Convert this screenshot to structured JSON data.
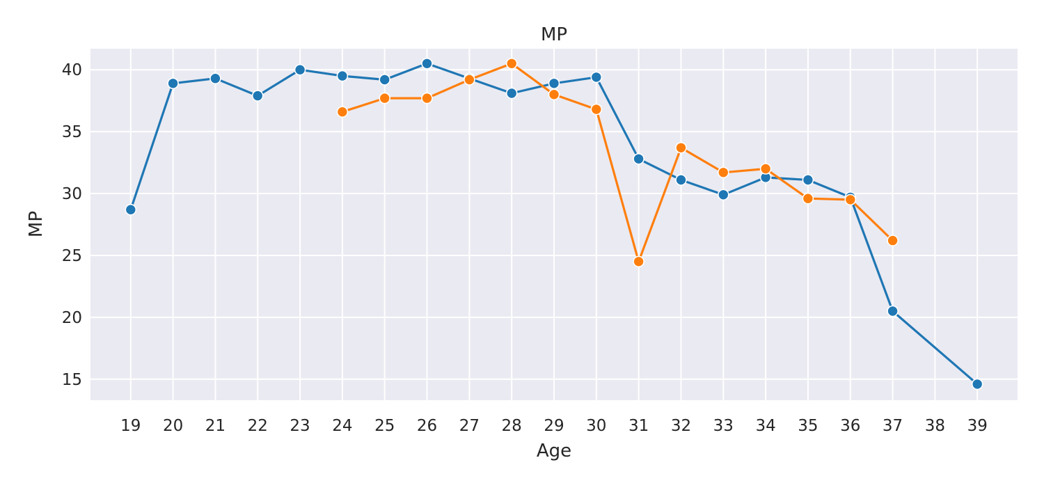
{
  "chart_data": {
    "type": "line",
    "title": "MP",
    "xlabel": "Age",
    "ylabel": "MP",
    "x": [
      19,
      20,
      21,
      22,
      23,
      24,
      25,
      26,
      27,
      28,
      29,
      30,
      31,
      32,
      33,
      34,
      35,
      36,
      37,
      38,
      39
    ],
    "xticks": [
      19,
      20,
      21,
      22,
      23,
      24,
      25,
      26,
      27,
      28,
      29,
      30,
      31,
      32,
      33,
      34,
      35,
      36,
      37,
      38,
      39
    ],
    "yticks": [
      15,
      20,
      25,
      30,
      35,
      40
    ],
    "ylim": [
      13.3,
      41.7
    ],
    "grid": true,
    "series": [
      {
        "color": "#1f77b4",
        "points": [
          [
            19,
            28.7
          ],
          [
            20,
            38.9
          ],
          [
            21,
            39.3
          ],
          [
            22,
            37.9
          ],
          [
            23,
            40.0
          ],
          [
            24,
            39.5
          ],
          [
            25,
            39.2
          ],
          [
            26,
            40.5
          ],
          [
            27,
            39.3
          ],
          [
            28,
            38.1
          ],
          [
            29,
            38.9
          ],
          [
            30,
            39.4
          ],
          [
            31,
            32.8
          ],
          [
            32,
            31.1
          ],
          [
            33,
            29.9
          ],
          [
            34,
            31.3
          ],
          [
            35,
            31.1
          ],
          [
            36,
            29.7
          ],
          [
            37,
            20.5
          ],
          [
            39,
            14.6
          ]
        ]
      },
      {
        "color": "#ff7f0e",
        "points": [
          [
            24,
            36.6
          ],
          [
            25,
            37.7
          ],
          [
            26,
            37.7
          ],
          [
            27,
            39.2
          ],
          [
            28,
            40.5
          ],
          [
            29,
            38.0
          ],
          [
            30,
            36.8
          ],
          [
            31,
            24.5
          ],
          [
            32,
            33.7
          ],
          [
            33,
            31.7
          ],
          [
            34,
            32.0
          ],
          [
            35,
            29.6
          ],
          [
            36,
            29.5
          ],
          [
            37,
            26.2
          ]
        ]
      }
    ],
    "colors": {
      "plot_background": "#eaeaf2",
      "grid": "#ffffff"
    }
  }
}
